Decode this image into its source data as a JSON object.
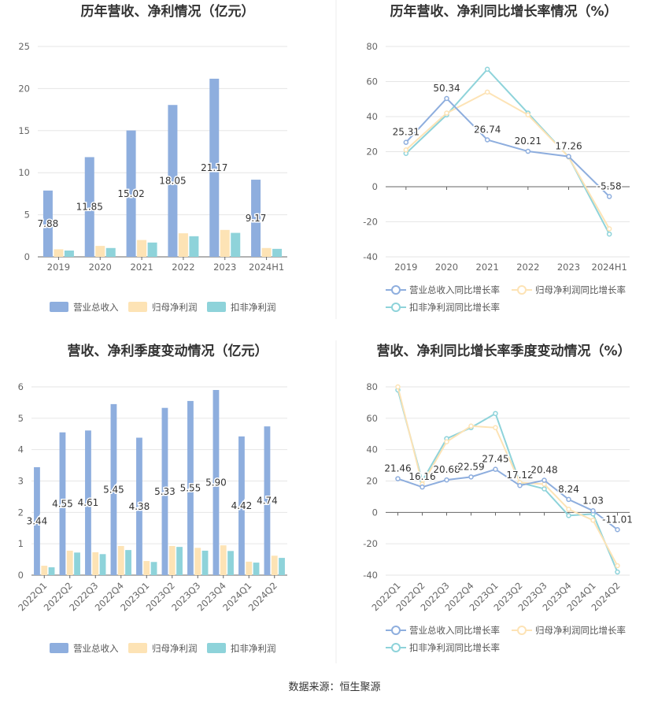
{
  "source": "数据来源：恒生聚源",
  "colors": {
    "revenue": "#8eaede",
    "net_profit": "#fde3b5",
    "deducted": "#8ed3da",
    "grid": "#e6e6e6",
    "axis": "#666666"
  },
  "chart_data": [
    {
      "type": "bar",
      "title": "历年营收、净利情况（亿元）",
      "categories": [
        "2019",
        "2020",
        "2021",
        "2022",
        "2023",
        "2024H1"
      ],
      "ylim": [
        0,
        25
      ],
      "yticks": [
        0,
        5,
        10,
        15,
        20,
        25
      ],
      "series": [
        {
          "name": "营业总收入",
          "values": [
            7.88,
            11.85,
            15.02,
            18.05,
            21.17,
            9.17
          ],
          "labels": [
            "7.88",
            "11.85",
            "15.02",
            "18.05",
            "21.17",
            "9.17"
          ]
        },
        {
          "name": "归母净利润",
          "values": [
            0.9,
            1.3,
            2.0,
            2.8,
            3.2,
            1.05
          ]
        },
        {
          "name": "扣非净利润",
          "values": [
            0.75,
            1.05,
            1.7,
            2.45,
            2.85,
            0.95
          ]
        }
      ],
      "grid": true,
      "legend": "bottom"
    },
    {
      "type": "line",
      "title": "历年营收、净利同比增长率情况（%）",
      "categories": [
        "2019",
        "2020",
        "2021",
        "2022",
        "2023",
        "2024H1"
      ],
      "ylim": [
        -40,
        80
      ],
      "yticks": [
        -40,
        -20,
        0,
        20,
        40,
        60,
        80
      ],
      "series": [
        {
          "name": "营业总收入同比增长率",
          "values": [
            25.31,
            50.34,
            26.74,
            20.21,
            17.26,
            -5.58
          ],
          "labels": [
            "25.31",
            "50.34",
            "26.74",
            "20.21",
            "17.26",
            "-5.58"
          ]
        },
        {
          "name": "归母净利润同比增长率",
          "values": [
            21,
            42,
            54,
            41,
            17,
            -24
          ]
        },
        {
          "name": "扣非净利润同比增长率",
          "values": [
            19,
            41,
            67,
            42,
            17,
            -27
          ]
        }
      ],
      "grid": true,
      "legend": "bottom"
    },
    {
      "type": "bar",
      "title": "营收、净利季度变动情况（亿元）",
      "categories": [
        "2022Q1",
        "2022Q2",
        "2022Q3",
        "2022Q4",
        "2023Q1",
        "2023Q2",
        "2023Q3",
        "2023Q4",
        "2024Q1",
        "2024Q2"
      ],
      "ylim": [
        0,
        6
      ],
      "yticks": [
        0,
        1,
        2,
        3,
        4,
        5,
        6
      ],
      "series": [
        {
          "name": "营业总收入",
          "values": [
            3.44,
            4.55,
            4.61,
            5.45,
            4.38,
            5.33,
            5.55,
            5.9,
            4.42,
            4.74
          ],
          "labels": [
            "3.44",
            "4.55",
            "4.61",
            "5.45",
            "4.38",
            "5.33",
            "5.55",
            "5.90",
            "4.42",
            "4.74"
          ]
        },
        {
          "name": "归母净利润",
          "values": [
            0.3,
            0.78,
            0.73,
            0.93,
            0.45,
            0.93,
            0.87,
            0.95,
            0.43,
            0.62
          ]
        },
        {
          "name": "扣非净利润",
          "values": [
            0.25,
            0.72,
            0.67,
            0.8,
            0.42,
            0.9,
            0.78,
            0.77,
            0.4,
            0.55
          ]
        }
      ],
      "grid": true,
      "legend": "bottom"
    },
    {
      "type": "line",
      "title": "营收、净利同比增长率季度变动情况（%）",
      "categories": [
        "2022Q1",
        "2022Q2",
        "2022Q3",
        "2022Q4",
        "2023Q1",
        "2023Q2",
        "2023Q3",
        "2023Q4",
        "2024Q1",
        "2024Q2"
      ],
      "ylim": [
        -40,
        80
      ],
      "yticks": [
        -40,
        -20,
        0,
        20,
        40,
        60,
        80
      ],
      "series": [
        {
          "name": "营业总收入同比增长率",
          "values": [
            21.46,
            16.16,
            20.68,
            22.59,
            27.45,
            17.12,
            20.48,
            8.24,
            1.03,
            -11.01
          ],
          "labels": [
            "21.46",
            "16.16",
            "20.68",
            "22.59",
            "27.45",
            "17.12",
            "20.48",
            "8.24",
            "1.03",
            "-11.01"
          ]
        },
        {
          "name": "归母净利润同比增长率",
          "values": [
            80,
            18,
            45,
            55,
            54,
            19,
            18,
            2,
            -5,
            -34
          ]
        },
        {
          "name": "扣非净利润同比增长率",
          "values": [
            78,
            20,
            47,
            54,
            63,
            19,
            15,
            -2,
            -1,
            -38
          ]
        }
      ],
      "grid": true,
      "legend": "bottom"
    }
  ]
}
